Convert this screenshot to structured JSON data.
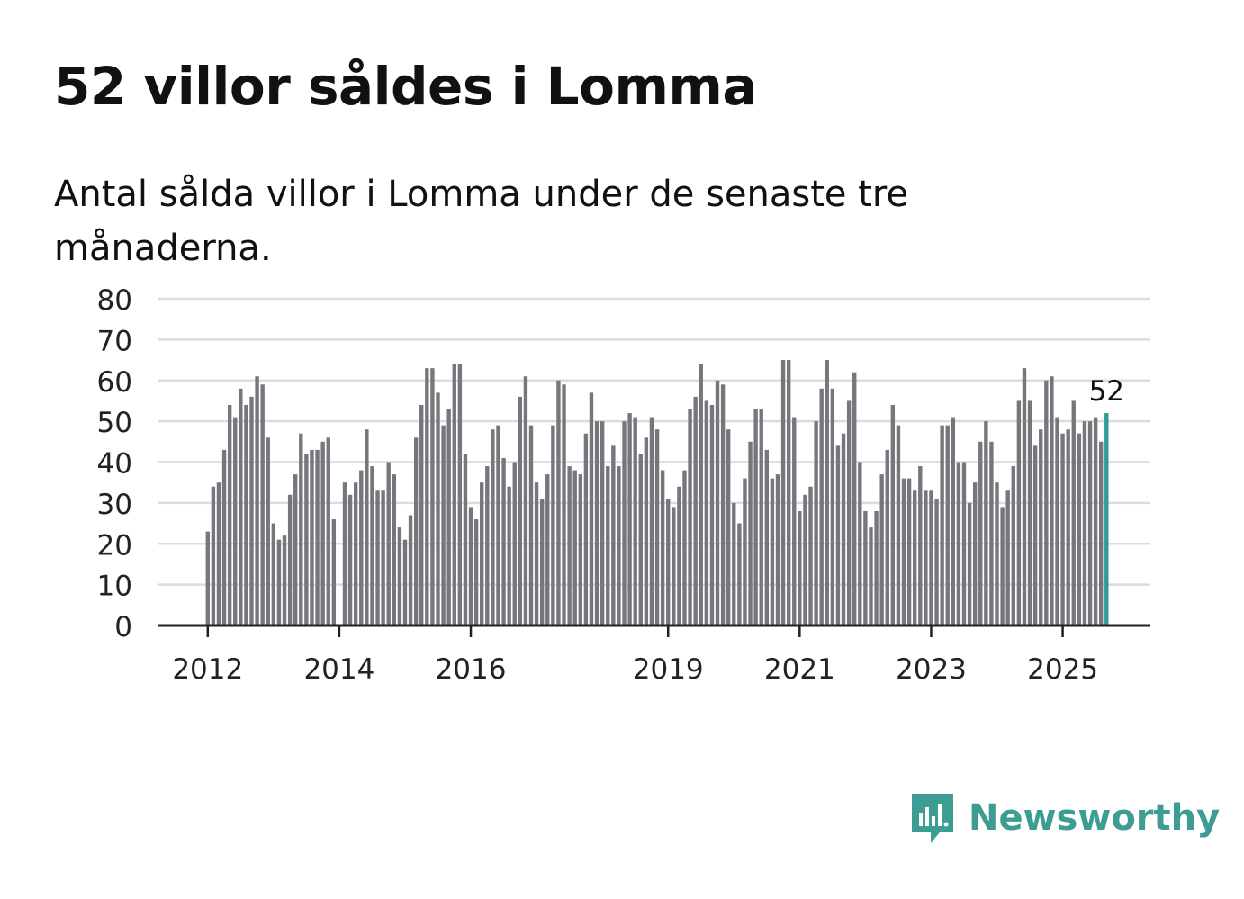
{
  "title": "52 villor såldes i Lomma",
  "subtitle": "Antal sålda villor i Lomma under de senaste tre månaderna.",
  "brand": {
    "name": "Newsworthy",
    "icon": "newsworthy-logo-icon"
  },
  "colors": {
    "bar": "#76767c",
    "highlight": "#2a9d94",
    "grid": "#dcdcdc",
    "axis": "#222222",
    "brand": "#3d9d93"
  },
  "chart_data": {
    "type": "bar",
    "title": "52 villor såldes i Lomma",
    "xlabel": "",
    "ylabel": "",
    "ylim": [
      0,
      80
    ],
    "yticks": [
      0,
      10,
      20,
      30,
      40,
      50,
      60,
      70,
      80
    ],
    "xticks": [
      "2012",
      "2014",
      "2016",
      "2019",
      "2021",
      "2023",
      "2025"
    ],
    "start": "2012-01",
    "x_range": [
      "2011-04",
      "2026-05"
    ],
    "highlight": {
      "label": "52",
      "value": 52
    },
    "values": [
      23,
      34,
      35,
      43,
      54,
      51,
      58,
      54,
      56,
      61,
      59,
      46,
      25,
      21,
      22,
      32,
      37,
      47,
      42,
      43,
      43,
      45,
      46,
      26,
      null,
      35,
      32,
      35,
      38,
      48,
      39,
      33,
      33,
      40,
      37,
      24,
      21,
      27,
      46,
      54,
      63,
      63,
      57,
      49,
      53,
      64,
      64,
      42,
      29,
      26,
      35,
      39,
      48,
      49,
      41,
      34,
      40,
      56,
      61,
      49,
      35,
      31,
      37,
      49,
      60,
      59,
      39,
      38,
      37,
      47,
      57,
      50,
      50,
      39,
      44,
      39,
      50,
      52,
      51,
      42,
      46,
      51,
      48,
      38,
      31,
      29,
      34,
      38,
      53,
      56,
      64,
      55,
      54,
      60,
      59,
      48,
      30,
      25,
      36,
      45,
      53,
      53,
      43,
      36,
      37,
      65,
      65,
      51,
      28,
      32,
      34,
      50,
      58,
      65,
      58,
      44,
      47,
      55,
      62,
      40,
      28,
      24,
      28,
      37,
      43,
      54,
      49,
      36,
      36,
      33,
      39,
      33,
      33,
      31,
      49,
      49,
      51,
      40,
      40,
      30,
      35,
      45,
      50,
      45,
      35,
      29,
      33,
      39,
      55,
      63,
      55,
      44,
      48,
      60,
      61,
      51,
      47,
      48,
      55,
      47,
      50,
      50,
      51,
      45,
      52
    ]
  }
}
